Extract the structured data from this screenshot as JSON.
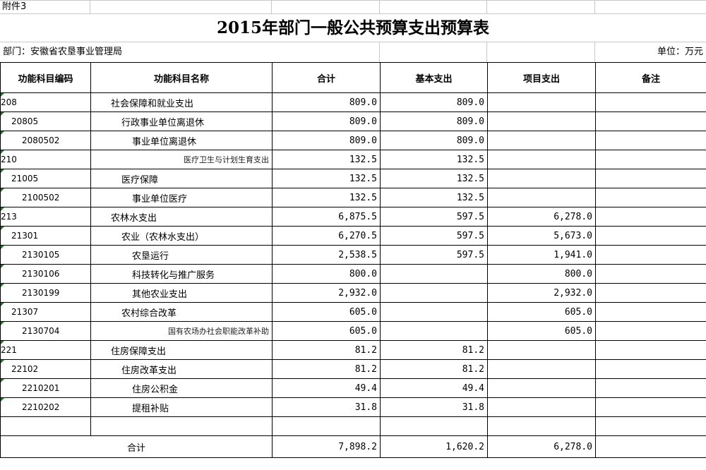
{
  "attachment": "附件3",
  "title": "2015年部门一般公共预算支出预算表",
  "department": "部门：安徽省农垦事业管理局",
  "unit": "单位：万元",
  "headers": [
    "功能科目编码",
    "功能科目名称",
    "合计",
    "基本支出",
    "项目支出",
    "备注"
  ],
  "rows": [
    {
      "code": "208",
      "name": "社会保障和就业支出",
      "total": "809.0",
      "basic": "809.0",
      "project": "",
      "level": 0
    },
    {
      "code": "20805",
      "name": "行政事业单位离退休",
      "total": "809.0",
      "basic": "809.0",
      "project": "",
      "level": 1
    },
    {
      "code": "2080502",
      "name": "事业单位离退休",
      "total": "809.0",
      "basic": "809.0",
      "project": "",
      "level": 2
    },
    {
      "code": "210",
      "name": "医疗卫生与计划生育支出",
      "total": "132.5",
      "basic": "132.5",
      "project": "",
      "level": 0
    },
    {
      "code": "21005",
      "name": "医疗保障",
      "total": "132.5",
      "basic": "132.5",
      "project": "",
      "level": 1
    },
    {
      "code": "2100502",
      "name": "事业单位医疗",
      "total": "132.5",
      "basic": "132.5",
      "project": "",
      "level": 2
    },
    {
      "code": "213",
      "name": "农林水支出",
      "total": "6,875.5",
      "basic": "597.5",
      "project": "6,278.0",
      "level": 0
    },
    {
      "code": "21301",
      "name": "农业（农林水支出）",
      "total": "6,270.5",
      "basic": "597.5",
      "project": "5,673.0",
      "level": 1
    },
    {
      "code": "2130105",
      "name": "农垦运行",
      "total": "2,538.5",
      "basic": "597.5",
      "project": "1,941.0",
      "level": 2
    },
    {
      "code": "2130106",
      "name": "科技转化与推广服务",
      "total": "800.0",
      "basic": "",
      "project": "800.0",
      "level": 2
    },
    {
      "code": "2130199",
      "name": "其他农业支出",
      "total": "2,932.0",
      "basic": "",
      "project": "2,932.0",
      "level": 2
    },
    {
      "code": "21307",
      "name": "农村综合改革",
      "total": "605.0",
      "basic": "",
      "project": "605.0",
      "level": 1
    },
    {
      "code": "2130704",
      "name": "国有农场办社会职能改革补助",
      "total": "605.0",
      "basic": "",
      "project": "605.0",
      "level": 2
    },
    {
      "code": "221",
      "name": "住房保障支出",
      "total": "81.2",
      "basic": "81.2",
      "project": "",
      "level": 0
    },
    {
      "code": "22102",
      "name": "住房改革支出",
      "total": "81.2",
      "basic": "81.2",
      "project": "",
      "level": 1
    },
    {
      "code": "2210201",
      "name": "住房公积金",
      "total": "49.4",
      "basic": "49.4",
      "project": "",
      "level": 2
    },
    {
      "code": "2210202",
      "name": "提租补贴",
      "total": "31.8",
      "basic": "31.8",
      "project": "",
      "level": 2
    }
  ],
  "total_row": {
    "label": "合计",
    "total": "7,898.2",
    "basic": "1,620.2",
    "project": "6,278.0"
  }
}
